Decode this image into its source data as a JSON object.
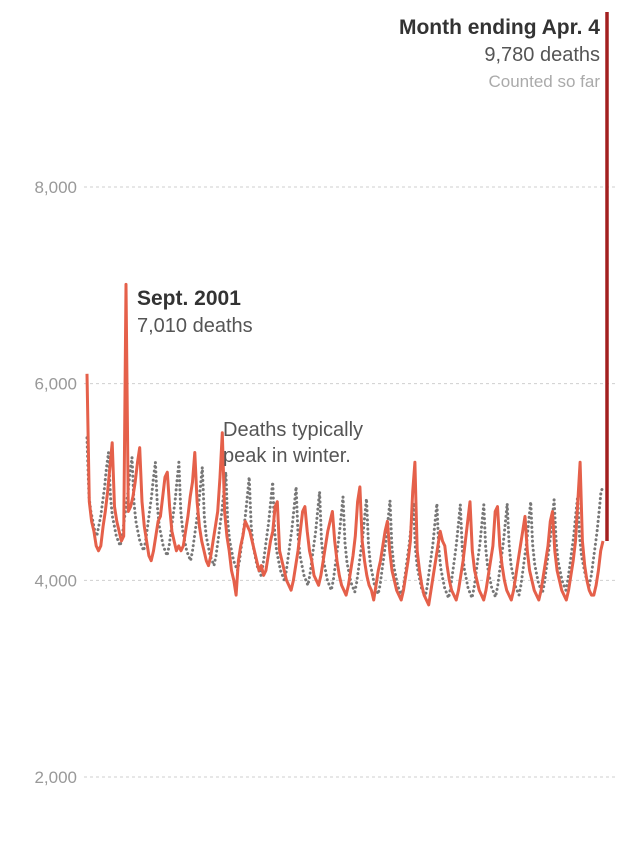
{
  "chart_data": {
    "type": "line",
    "title": "",
    "xlabel": "",
    "ylabel": "",
    "ylim": [
      1900,
      9900
    ],
    "y_ticks": [
      {
        "value": 2000,
        "label": "2,000"
      },
      {
        "value": 4000,
        "label": "4,000"
      },
      {
        "value": 6000,
        "label": "6,000"
      },
      {
        "value": 8000,
        "label": "8,000"
      }
    ],
    "grid": true,
    "colors": {
      "actual": "#e5604a",
      "expected": "#777777",
      "current": "#a32020"
    },
    "series": [
      {
        "style": "dotted",
        "values": [
          5450,
          4850,
          4700,
          4600,
          4500,
          4450,
          4550,
          4650,
          4800,
          4950,
          5150,
          5300,
          4850,
          4650,
          4550,
          4450,
          4400,
          4350,
          4450,
          4600,
          4750,
          4900,
          5100,
          5250,
          4800,
          4600,
          4500,
          4400,
          4350,
          4300,
          4400,
          4550,
          4700,
          4850,
          5050,
          5200,
          4750,
          4550,
          4450,
          4350,
          4300,
          4250,
          4350,
          4500,
          4650,
          4800,
          5000,
          5200,
          4700,
          4500,
          4400,
          4300,
          4250,
          4200,
          4300,
          4450,
          4600,
          4750,
          4950,
          5150,
          4650,
          4450,
          4350,
          4250,
          4200,
          4150,
          4250,
          4400,
          4550,
          4700,
          4900,
          5100,
          4600,
          4400,
          4300,
          4200,
          4150,
          4100,
          4200,
          4350,
          4500,
          4650,
          4850,
          5050,
          4550,
          4350,
          4250,
          4150,
          4100,
          4050,
          4150,
          4300,
          4450,
          4600,
          4800,
          5000,
          4500,
          4300,
          4200,
          4100,
          4050,
          4000,
          4100,
          4250,
          4400,
          4550,
          4750,
          4950,
          4450,
          4250,
          4150,
          4050,
          4000,
          3950,
          4050,
          4200,
          4350,
          4500,
          4700,
          4900,
          4400,
          4200,
          4100,
          4000,
          3950,
          3900,
          4000,
          4150,
          4300,
          4450,
          4650,
          4850,
          4380,
          4180,
          4080,
          3980,
          3930,
          3880,
          3980,
          4130,
          4280,
          4430,
          4630,
          4830,
          4360,
          4160,
          4060,
          3960,
          3910,
          3860,
          3960,
          4110,
          4260,
          4410,
          4610,
          4810,
          4340,
          4140,
          4040,
          3940,
          3890,
          3840,
          3940,
          4090,
          4240,
          4390,
          4590,
          4790,
          4330,
          4130,
          4030,
          3930,
          3880,
          3830,
          3930,
          4080,
          4230,
          4380,
          4580,
          4780,
          4320,
          4120,
          4020,
          3920,
          3870,
          3820,
          3920,
          4070,
          4220,
          4370,
          4570,
          4770,
          4320,
          4120,
          4020,
          3920,
          3870,
          3820,
          3920,
          4070,
          4220,
          4370,
          4570,
          4770,
          4330,
          4130,
          4030,
          3930,
          3880,
          3830,
          3930,
          4080,
          4230,
          4380,
          4580,
          4780,
          4350,
          4150,
          4050,
          3950,
          3900,
          3850,
          3950,
          4100,
          4250,
          4400,
          4600,
          4800,
          4370,
          4170,
          4070,
          3970,
          3920,
          3870,
          3970,
          4120,
          4270,
          4420,
          4620,
          4820,
          4400,
          4200,
          4100,
          4000,
          3950,
          3900,
          4000,
          4150,
          4300,
          4450,
          4650,
          4850,
          4450,
          4250,
          4150,
          4050,
          4000,
          3950,
          4050,
          4200,
          4350,
          4500,
          4700,
          4900,
          4950
        ]
      },
      {
        "style": "solid",
        "values": [
          6100,
          4800,
          4600,
          4500,
          4350,
          4300,
          4350,
          4550,
          4700,
          4900,
          5150,
          5400,
          4750,
          4600,
          4500,
          4400,
          4450,
          7010,
          4700,
          4750,
          4850,
          5000,
          5200,
          5350,
          4800,
          4550,
          4400,
          4250,
          4200,
          4300,
          4450,
          4600,
          4650,
          4850,
          5050,
          5100,
          4750,
          4500,
          4400,
          4300,
          4350,
          4300,
          4350,
          4500,
          4650,
          4850,
          5000,
          5300,
          4800,
          4550,
          4400,
          4300,
          4200,
          4150,
          4250,
          4400,
          4550,
          4700,
          5050,
          5500,
          4700,
          4450,
          4300,
          4100,
          4000,
          3850,
          4200,
          4350,
          4450,
          4600,
          4550,
          4500,
          4400,
          4300,
          4200,
          4100,
          4150,
          4050,
          4100,
          4250,
          4400,
          4500,
          4750,
          4800,
          4300,
          4200,
          4100,
          4000,
          3950,
          3900,
          4000,
          4150,
          4300,
          4500,
          4700,
          4750,
          4500,
          4300,
          4200,
          4050,
          4000,
          3950,
          4050,
          4200,
          4350,
          4500,
          4600,
          4700,
          4400,
          4200,
          4050,
          3950,
          3900,
          3850,
          3950,
          4100,
          4250,
          4450,
          4800,
          4950,
          4400,
          4200,
          4050,
          3950,
          3900,
          3800,
          3950,
          4100,
          4200,
          4350,
          4500,
          4600,
          4300,
          4100,
          4000,
          3900,
          3850,
          3800,
          3900,
          4050,
          4200,
          4400,
          4900,
          5200,
          4300,
          4100,
          3950,
          3850,
          3800,
          3750,
          3900,
          4050,
          4200,
          4350,
          4500,
          4400,
          4350,
          4150,
          4000,
          3900,
          3850,
          3800,
          3900,
          4050,
          4200,
          4400,
          4600,
          4800,
          4300,
          4100,
          4000,
          3900,
          3850,
          3800,
          3900,
          4050,
          4200,
          4350,
          4700,
          4750,
          4350,
          4150,
          4000,
          3900,
          3850,
          3800,
          3900,
          4050,
          4200,
          4350,
          4500,
          4650,
          4300,
          4100,
          4000,
          3900,
          3850,
          3800,
          3900,
          4050,
          4200,
          4350,
          4600,
          4700,
          4300,
          4100,
          4000,
          3900,
          3850,
          3800,
          3900,
          4050,
          4200,
          4400,
          4800,
          5200,
          4400,
          4150,
          4000,
          3900,
          3850,
          3850,
          3950,
          4100,
          4300,
          4400
        ]
      },
      {
        "style": "solid-dark",
        "values": [
          4400,
          9780
        ]
      }
    ]
  },
  "annotations": {
    "current": {
      "title": "Month ending Apr. 4",
      "value": "9,780 deaths",
      "note": "Counted so far"
    },
    "sept2001": {
      "title": "Sept. 2001",
      "value": "7,010 deaths"
    },
    "winter": {
      "line1": "Deaths typically",
      "line2": "peak in winter."
    }
  }
}
